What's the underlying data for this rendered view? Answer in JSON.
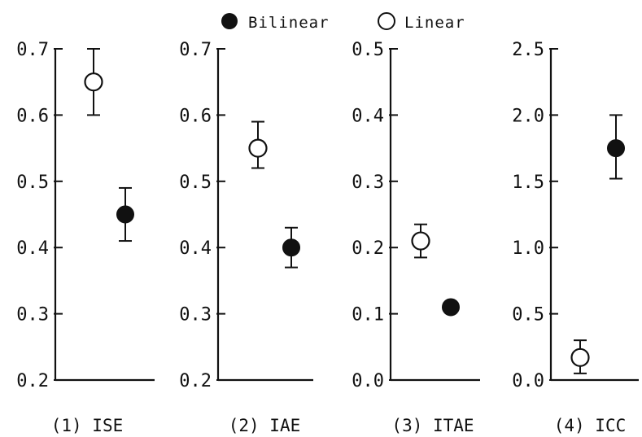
{
  "legend": {
    "items": [
      {
        "label": "Bilinear",
        "marker": "filled"
      },
      {
        "label": "Linear",
        "marker": "open"
      }
    ]
  },
  "colors": {
    "ink": "#111111",
    "background": "#ffffff",
    "open_fill": "#ffffff"
  },
  "chart_data": [
    {
      "type": "scatter",
      "title": "(1) ISE",
      "ylim": [
        0.2,
        0.7
      ],
      "yticks": [
        "0.2",
        "0.3",
        "0.4",
        "0.5",
        "0.6",
        "0.7"
      ],
      "grid": false,
      "series": [
        {
          "name": "Linear",
          "marker": "open",
          "position": "left",
          "value": 0.65,
          "err_low": 0.6,
          "err_high": 0.7
        },
        {
          "name": "Bilinear",
          "marker": "filled",
          "position": "right",
          "value": 0.45,
          "err_low": 0.41,
          "err_high": 0.49
        }
      ]
    },
    {
      "type": "scatter",
      "title": "(2) IAE",
      "ylim": [
        0.2,
        0.7
      ],
      "yticks": [
        "0.2",
        "0.3",
        "0.4",
        "0.5",
        "0.6",
        "0.7"
      ],
      "grid": false,
      "series": [
        {
          "name": "Linear",
          "marker": "open",
          "position": "left",
          "value": 0.55,
          "err_low": 0.52,
          "err_high": 0.59
        },
        {
          "name": "Bilinear",
          "marker": "filled",
          "position": "right",
          "value": 0.4,
          "err_low": 0.37,
          "err_high": 0.43
        }
      ]
    },
    {
      "type": "scatter",
      "title": "(3) ITAE",
      "ylim": [
        0.0,
        0.5
      ],
      "yticks": [
        "0.0",
        "0.1",
        "0.2",
        "0.3",
        "0.4",
        "0.5"
      ],
      "grid": false,
      "series": [
        {
          "name": "Linear",
          "marker": "open",
          "position": "left",
          "value": 0.21,
          "err_low": 0.185,
          "err_high": 0.235
        },
        {
          "name": "Bilinear",
          "marker": "filled",
          "position": "right",
          "value": 0.11,
          "err_low": null,
          "err_high": null
        }
      ]
    },
    {
      "type": "scatter",
      "title": "(4) ICC",
      "ylim": [
        0.0,
        2.5
      ],
      "yticks": [
        "0.0",
        "0.5",
        "1.0",
        "1.5",
        "2.0",
        "2.5"
      ],
      "grid": false,
      "series": [
        {
          "name": "Linear",
          "marker": "open",
          "position": "left",
          "value": 0.17,
          "err_low": 0.05,
          "err_high": 0.3
        },
        {
          "name": "Bilinear",
          "marker": "filled",
          "position": "right",
          "value": 1.75,
          "err_low": 1.52,
          "err_high": 2.0
        }
      ]
    }
  ]
}
